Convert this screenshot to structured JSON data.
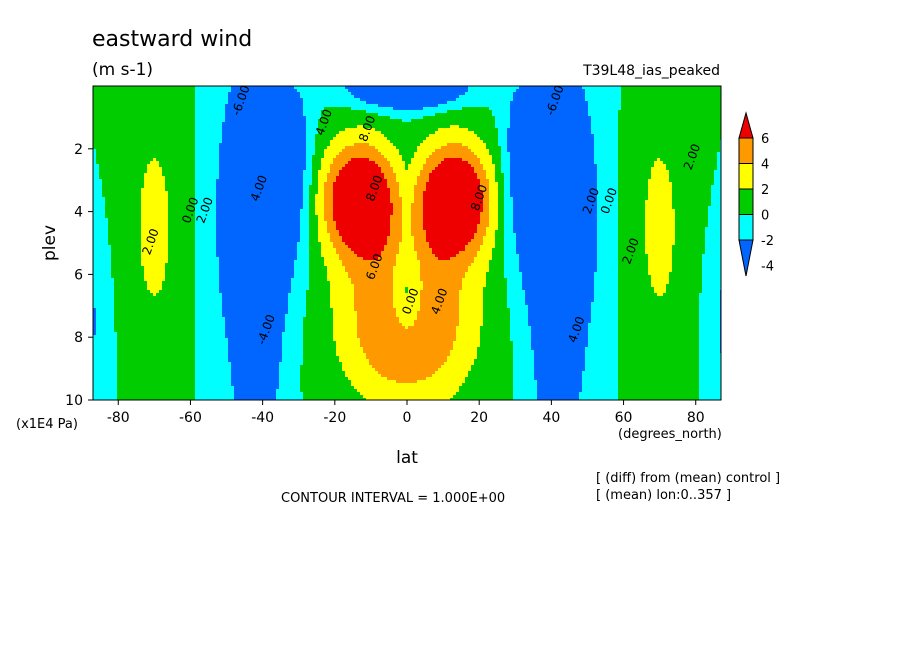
{
  "chart_data": {
    "type": "heatmap",
    "title": "eastward wind",
    "units": "(m s-1)",
    "run_label": "T39L48_ias_peaked",
    "xlabel": "lat",
    "x_units": "(degrees_north)",
    "ylabel": "plev",
    "y_units": "(x1E4 Pa)",
    "xlim": [
      -87,
      87
    ],
    "ylim": [
      0,
      10
    ],
    "y_inverted": true,
    "x_ticks": [
      -80,
      -60,
      -40,
      -20,
      0,
      20,
      40,
      60,
      80
    ],
    "y_ticks": [
      2,
      4,
      6,
      8,
      10
    ],
    "contour_interval_text": "CONTOUR INTERVAL = 1.000E+00",
    "notes": [
      "[ (diff) from (mean) control ]",
      "[ (mean) lon:0..357 ]"
    ],
    "colorbar": {
      "levels": [
        6,
        4,
        2,
        0,
        -2,
        -4
      ],
      "colors": [
        "#ee0000",
        "#ff9900",
        "#ffff00",
        "#00cc00",
        "#00ffff",
        "#0066ff"
      ],
      "top_color": "#ee0000",
      "bottom_color": "#0066ff"
    },
    "contour_labels": [
      {
        "text": "-6.00",
        "lat": -45,
        "plev": 0.5
      },
      {
        "text": "4.00",
        "lat": -40,
        "plev": 3.3
      },
      {
        "text": "0.00",
        "lat": -59,
        "plev": 4.0
      },
      {
        "text": "2.00",
        "lat": -55,
        "plev": 4.0
      },
      {
        "text": "2.00",
        "lat": -70,
        "plev": 5.0
      },
      {
        "text": "-4.00",
        "lat": -38,
        "plev": 7.8
      },
      {
        "text": "4.00",
        "lat": -22,
        "plev": 1.2
      },
      {
        "text": "8.00",
        "lat": -10,
        "plev": 1.4
      },
      {
        "text": "8.00",
        "lat": -8,
        "plev": 3.3
      },
      {
        "text": "6.00",
        "lat": -8,
        "plev": 5.8
      },
      {
        "text": "0.00",
        "lat": 2,
        "plev": 6.9
      },
      {
        "text": "4.00",
        "lat": 10,
        "plev": 6.9
      },
      {
        "text": "8.00",
        "lat": 21,
        "plev": 3.6
      },
      {
        "text": "-6.00",
        "lat": 42,
        "plev": 0.5
      },
      {
        "text": "2.00",
        "lat": 52,
        "plev": 3.7
      },
      {
        "text": "0.00",
        "lat": 57,
        "plev": 3.7
      },
      {
        "text": "2.00",
        "lat": 63,
        "plev": 5.3
      },
      {
        "text": "2.00",
        "lat": 80,
        "plev": 2.3
      },
      {
        "text": "4.00",
        "lat": 48,
        "plev": 7.8
      }
    ],
    "field_features": [
      {
        "sign": "positive",
        "lat": -13,
        "plev": 3.6,
        "peak": 9
      },
      {
        "sign": "positive",
        "lat": 13,
        "plev": 3.6,
        "peak": 9
      },
      {
        "sign": "negative",
        "lat": 0,
        "plev": 0.3,
        "peak": -7
      },
      {
        "sign": "negative",
        "lat": -42,
        "plev": 4.2,
        "peak": -7
      },
      {
        "sign": "negative",
        "lat": 43,
        "plev": 4.2,
        "peak": -7
      },
      {
        "sign": "positive",
        "lat": -68,
        "plev": 4.5,
        "peak": 2.5
      },
      {
        "sign": "positive",
        "lat": 72,
        "plev": 4.5,
        "peak": 2.5
      }
    ]
  }
}
